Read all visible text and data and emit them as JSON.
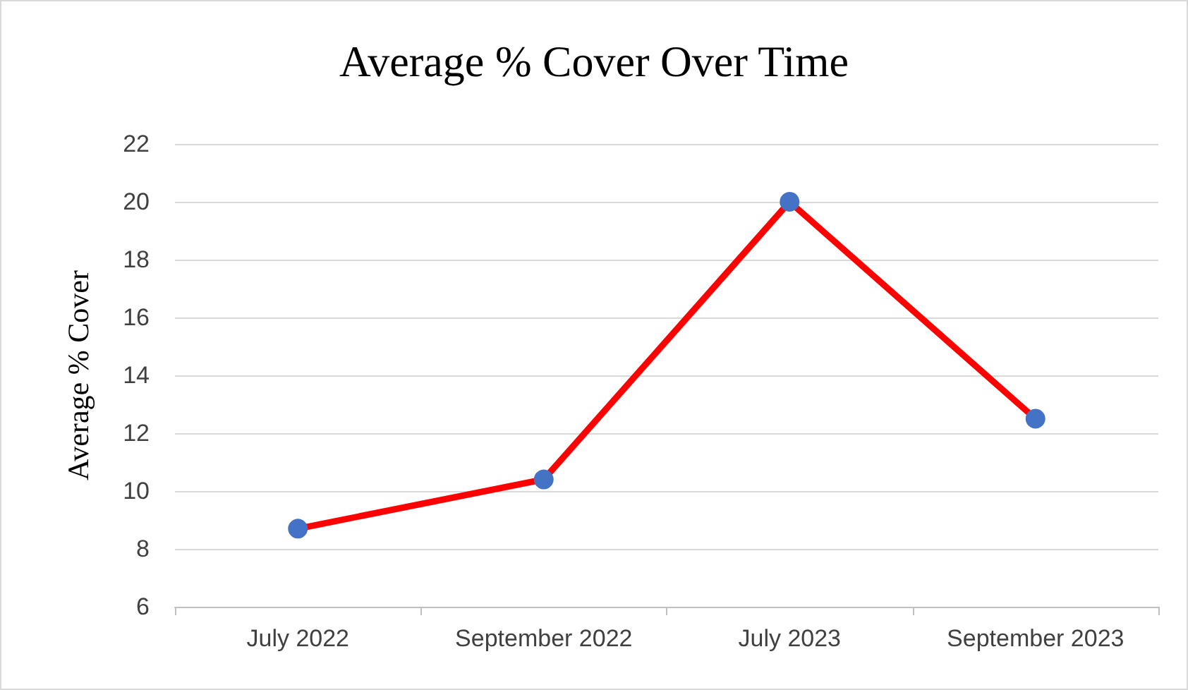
{
  "chart_data": {
    "type": "line",
    "title": "Average % Cover Over Time",
    "ylabel": "Average % Cover",
    "categories": [
      "July 2022",
      "September 2022",
      "July 2023",
      "September 2023"
    ],
    "series": [
      {
        "color": "#ff0000",
        "colors": [
          "#4472c4",
          "#4472c4",
          "#4472c4",
          "#4472c4"
        ],
        "values": [
          8.7,
          10.4,
          20,
          12.5
        ]
      }
    ],
    "ylim": [
      6,
      22
    ],
    "yticks": [
      6,
      8,
      10,
      12,
      14,
      16,
      18,
      20,
      22
    ],
    "grid": "y",
    "marker": "circle",
    "line_style": "solid"
  }
}
